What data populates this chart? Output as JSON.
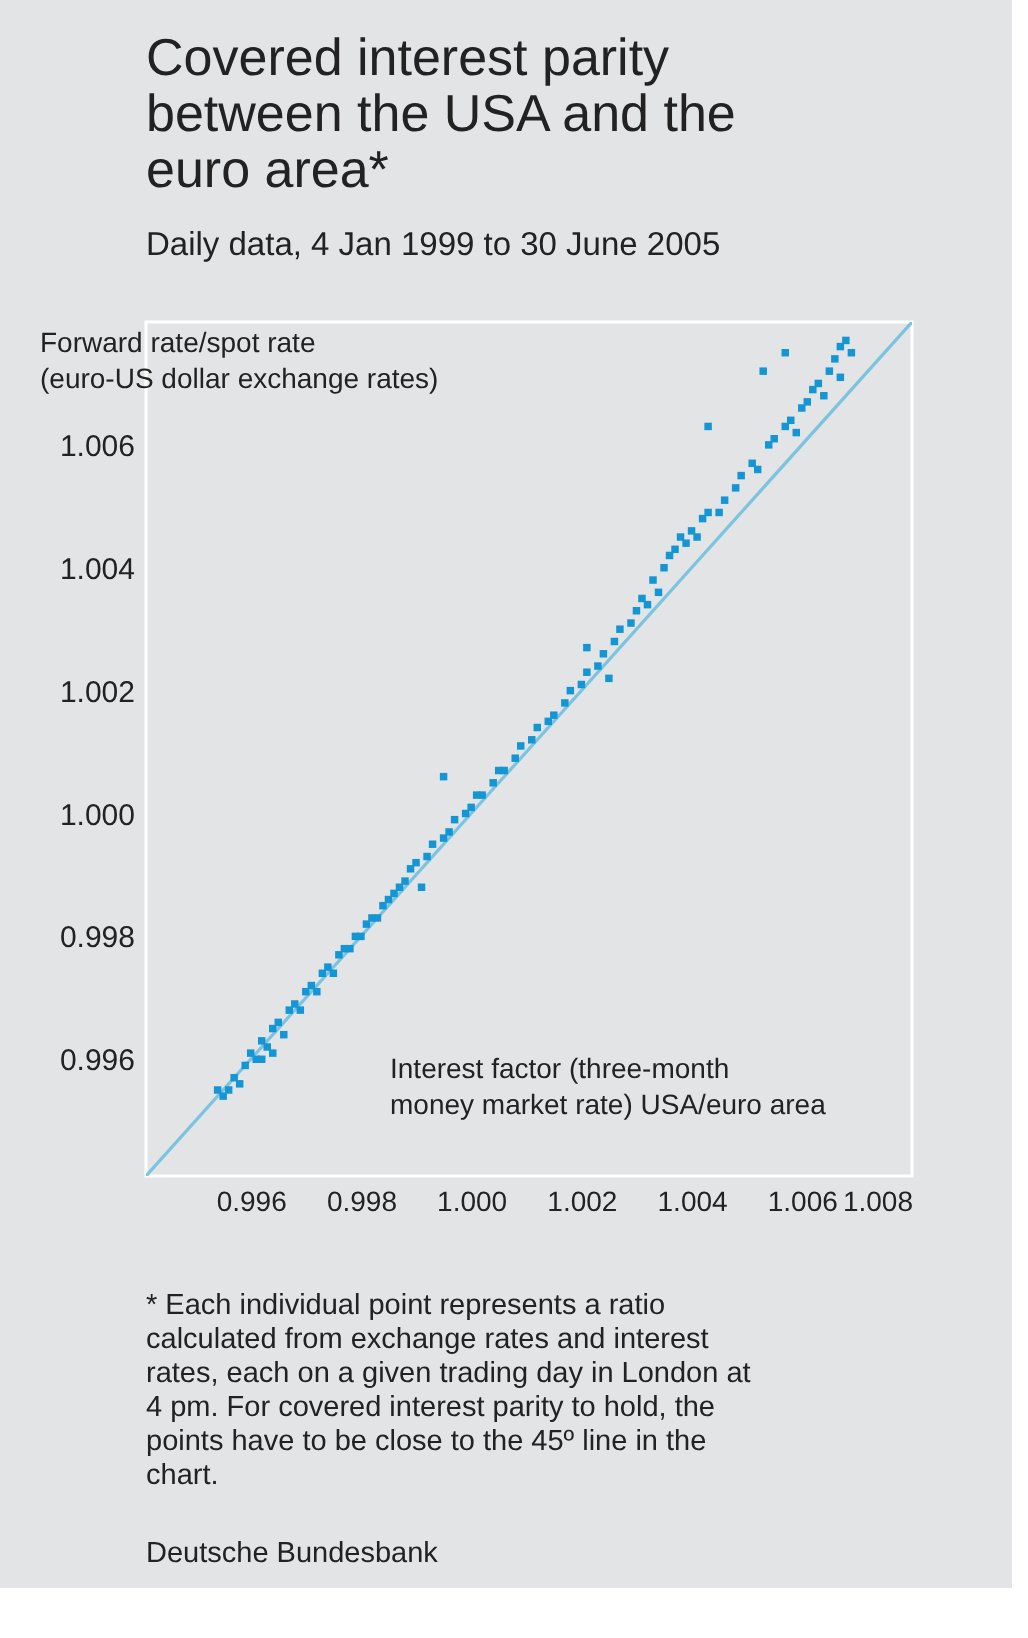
{
  "chart_data": {
    "type": "scatter",
    "title": "Covered interest parity between the USA and the euro area*",
    "subtitle": "Daily data, 4 Jan 1999 to 30 June 2005",
    "ylabel": "Forward rate/spot rate (euro-US dollar exchange rates)",
    "xlabel": "Interest factor (three-month money market rate) USA/euro area",
    "annotations": [
      "* Each individual point represents a ratio calculated from exchange rates and interest rates, each on a given trading day in London at 4 pm. For covered interest parity to hold, the points have to be close to the 45º line in the chart.",
      "Deutsche Bundesbank"
    ],
    "xlim": [
      0.9941,
      1.008
    ],
    "ylim": [
      0.9941,
      1.008
    ],
    "xticks": [
      {
        "value": 0.996,
        "label": "0.996"
      },
      {
        "value": 0.998,
        "label": "0.998"
      },
      {
        "value": 1.0,
        "label": "1.000"
      },
      {
        "value": 1.002,
        "label": "1.002"
      },
      {
        "value": 1.004,
        "label": "1.004"
      },
      {
        "value": 1.006,
        "label": "1.006"
      },
      {
        "value": 1.008,
        "label": "1.008"
      }
    ],
    "yticks": [
      {
        "value": 0.996,
        "label": "0.996"
      },
      {
        "value": 0.998,
        "label": "0.998"
      },
      {
        "value": 1.0,
        "label": "1.000"
      },
      {
        "value": 1.002,
        "label": "1.002"
      },
      {
        "value": 1.004,
        "label": "1.004"
      },
      {
        "value": 1.006,
        "label": "1.006"
      }
    ],
    "grid": false,
    "marker": "square",
    "series": [
      {
        "type": "line",
        "color": "#7cc3e0",
        "marker": "none",
        "line_style": "solid",
        "x": [
          0.9941,
          1.008
        ],
        "values": [
          0.9941,
          1.008
        ]
      },
      {
        "color": "#1596d4",
        "x": [
          0.9954,
          0.9955,
          0.9956,
          0.9957,
          0.9958,
          0.9959,
          0.996,
          0.9961,
          0.9962,
          0.9962,
          0.9963,
          0.9964,
          0.9964,
          0.9965,
          0.9966,
          0.9967,
          0.9968,
          0.9969,
          0.997,
          0.9971,
          0.9972,
          0.9973,
          0.9974,
          0.9975,
          0.9976,
          0.9977,
          0.9978,
          0.9979,
          0.998,
          0.9981,
          0.9982,
          0.9983,
          0.9984,
          0.9985,
          0.9986,
          0.9987,
          0.9988,
          0.9989,
          0.999,
          0.9991,
          0.9992,
          0.9993,
          0.9995,
          0.9995,
          0.9996,
          0.9997,
          0.9999,
          1.0,
          1.0001,
          1.0002,
          1.0004,
          1.0005,
          1.0006,
          1.0008,
          1.0009,
          1.0011,
          1.0012,
          1.0014,
          1.0015,
          1.0017,
          1.0018,
          1.002,
          1.0021,
          1.0021,
          1.0023,
          1.0025,
          1.0024,
          1.0026,
          1.0027,
          1.0029,
          1.003,
          1.0031,
          1.0032,
          1.0033,
          1.0034,
          1.0035,
          1.0036,
          1.0037,
          1.0038,
          1.0039,
          1.004,
          1.0041,
          1.0042,
          1.0043,
          1.0043,
          1.0045,
          1.0046,
          1.0048,
          1.0049,
          1.0051,
          1.0052,
          1.0053,
          1.0054,
          1.0055,
          1.0057,
          1.0057,
          1.0058,
          1.0059,
          1.006,
          1.0061,
          1.0062,
          1.0063,
          1.0064,
          1.0065,
          1.0066,
          1.0067,
          1.0067,
          1.0068,
          1.0069
        ],
        "values": [
          0.9955,
          0.9954,
          0.9955,
          0.9957,
          0.9956,
          0.9959,
          0.9961,
          0.996,
          0.9963,
          0.996,
          0.9962,
          0.9965,
          0.9961,
          0.9966,
          0.9964,
          0.9968,
          0.9969,
          0.9968,
          0.9971,
          0.9972,
          0.9971,
          0.9974,
          0.9975,
          0.9974,
          0.9977,
          0.9978,
          0.9978,
          0.998,
          0.998,
          0.9982,
          0.9983,
          0.9983,
          0.9985,
          0.9986,
          0.9987,
          0.9988,
          0.9989,
          0.9991,
          0.9992,
          0.9988,
          0.9993,
          0.9995,
          0.9996,
          1.0006,
          0.9997,
          0.9999,
          1.0,
          1.0001,
          1.0003,
          1.0003,
          1.0005,
          1.0007,
          1.0007,
          1.0009,
          1.0011,
          1.0012,
          1.0014,
          1.0015,
          1.0016,
          1.0018,
          1.002,
          1.0021,
          1.0023,
          1.0027,
          1.0024,
          1.0022,
          1.0026,
          1.0028,
          1.003,
          1.0031,
          1.0033,
          1.0035,
          1.0034,
          1.0038,
          1.0036,
          1.004,
          1.0042,
          1.0043,
          1.0045,
          1.0044,
          1.0046,
          1.0045,
          1.0048,
          1.0049,
          1.0063,
          1.0049,
          1.0051,
          1.0053,
          1.0055,
          1.0057,
          1.0056,
          1.0072,
          1.006,
          1.0061,
          1.0063,
          1.0075,
          1.0064,
          1.0062,
          1.0066,
          1.0067,
          1.0069,
          1.007,
          1.0068,
          1.0072,
          1.0074,
          1.0076,
          1.0071,
          1.0077,
          1.0075
        ]
      }
    ]
  }
}
